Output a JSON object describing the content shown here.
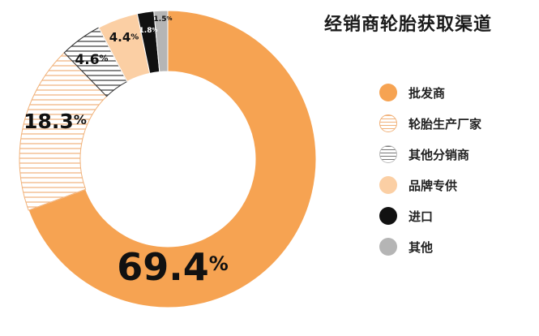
{
  "chart_data": {
    "type": "pie",
    "title": "经销商轮胎获取渠道",
    "categories": [
      "批发商",
      "轮胎生产厂家",
      "其他分销商",
      "品牌专供",
      "进口",
      "其他"
    ],
    "values": [
      69.4,
      18.3,
      4.6,
      4.4,
      1.8,
      1.5
    ],
    "value_labels": [
      "69.4",
      "18.3",
      "4.6",
      "4.4",
      "1.8",
      "1.5"
    ],
    "unit": "%",
    "colors": [
      "#F6A352",
      "#F8C9A0",
      "#9E9E9E",
      "#FBCFA4",
      "#111111",
      "#B5B5B5"
    ],
    "fill_styles": [
      "solid",
      "h-stripes",
      "v-stripes",
      "solid",
      "solid",
      "solid"
    ],
    "legend_position": "right"
  },
  "legend_items": [
    {
      "label": "批发商"
    },
    {
      "label": "轮胎生产厂家"
    },
    {
      "label": "其他分销商"
    },
    {
      "label": "品牌专供"
    },
    {
      "label": "进口"
    },
    {
      "label": "其他"
    }
  ]
}
